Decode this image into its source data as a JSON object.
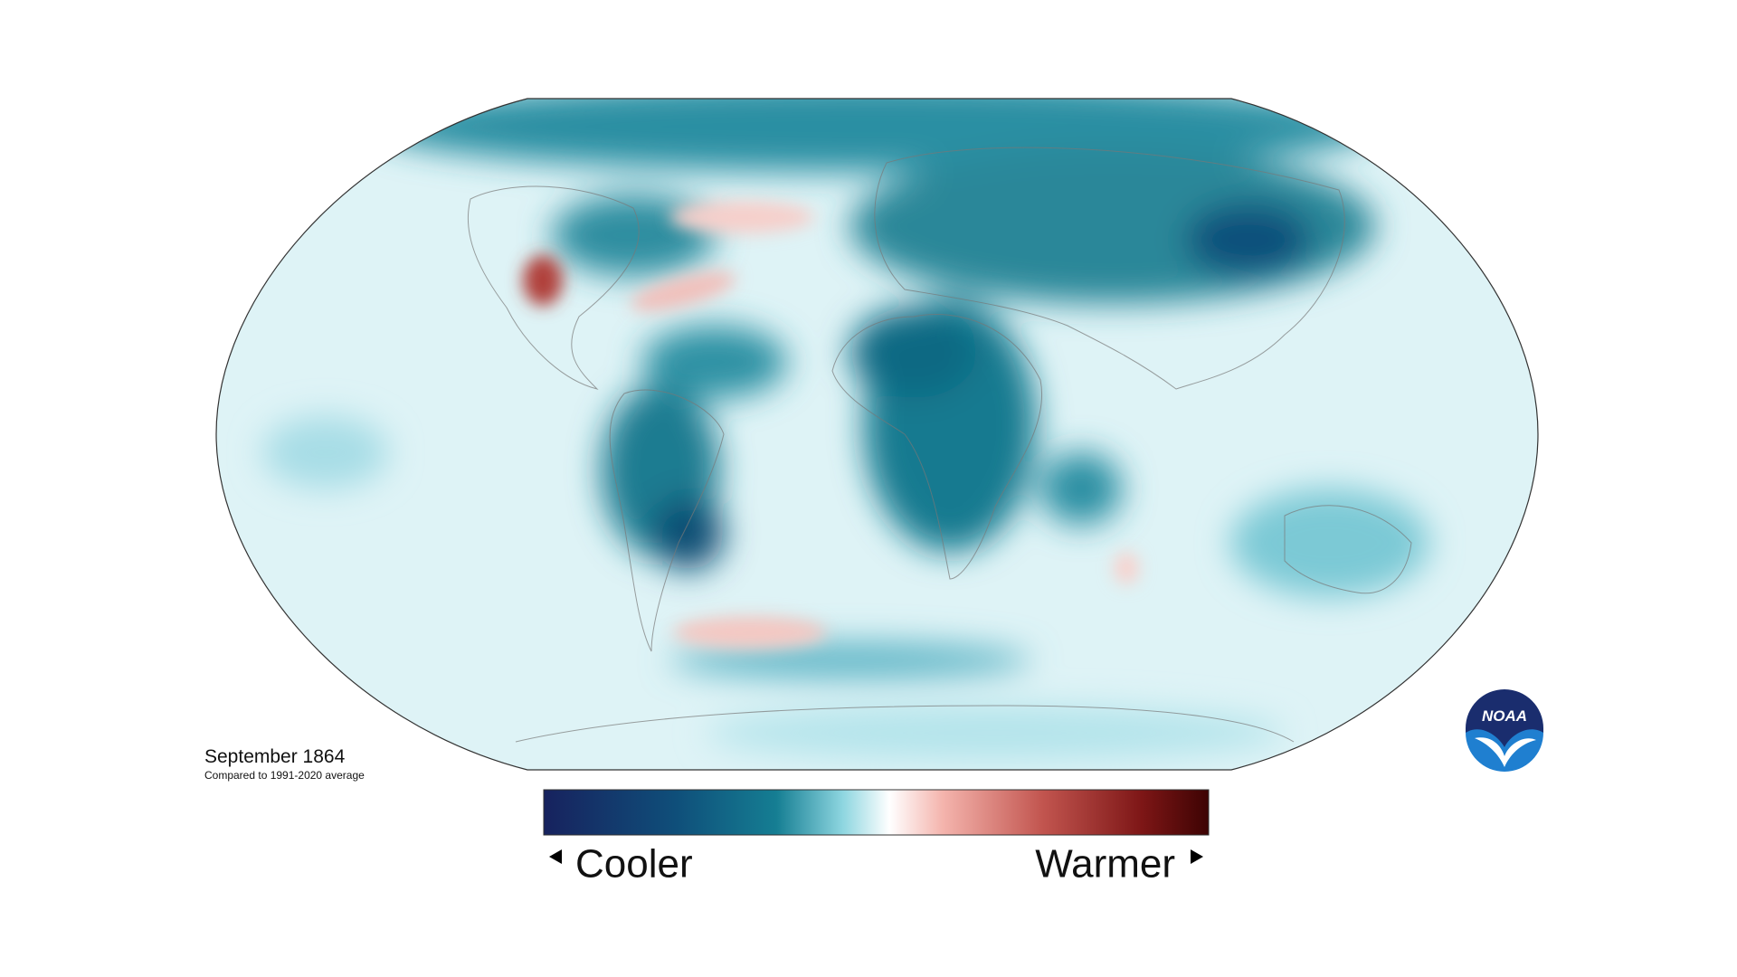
{
  "title": "September 1864",
  "subtitle": "Compared to 1991-2020 average",
  "legend": {
    "low_label": "Cooler",
    "high_label": "Warmer"
  },
  "logo": {
    "text": "NOAA"
  }
}
